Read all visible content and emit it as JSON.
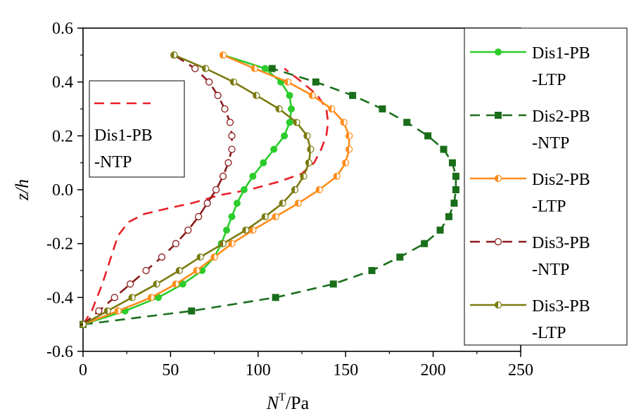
{
  "chart_data": {
    "type": "line",
    "xlabel": {
      "main": "N",
      "sup": "T",
      "rest": "/Pa"
    },
    "ylabel": "z/h",
    "xlim": [
      0,
      250
    ],
    "ylim": [
      -0.6,
      0.6
    ],
    "xticks": [
      "0",
      "50",
      "100",
      "150",
      "200",
      "250"
    ],
    "yticks": [
      "-0.6",
      "-0.4",
      "-0.2",
      "0.0",
      "0.2",
      "0.4",
      "0.6"
    ],
    "grid": false,
    "legend_placement": "right-outside (boxed); one entry boxed upper-left inside plot",
    "series": [
      {
        "name": "Dis1-PB -NTP",
        "name_lines": [
          "Dis1-PB",
          "-NTP"
        ],
        "color": "#e8202a",
        "dash": "14,9",
        "marker": "none",
        "x": [
          0,
          5,
          11,
          16,
          20,
          26,
          35,
          48,
          62,
          78,
          95,
          112,
          125,
          132,
          136,
          139,
          140,
          139,
          134,
          125,
          115
        ],
        "y": [
          -0.5,
          -0.45,
          -0.35,
          -0.25,
          -0.17,
          -0.12,
          -0.09,
          -0.07,
          -0.05,
          -0.02,
          0.0,
          0.03,
          0.06,
          0.1,
          0.15,
          0.2,
          0.25,
          0.3,
          0.35,
          0.4,
          0.45
        ]
      },
      {
        "name": "Dis2-PB -NTP",
        "name_lines": [
          "Dis2-PB",
          "-NTP"
        ],
        "color": "#1a6e1a",
        "dash": "14,9",
        "marker": "square",
        "x": [
          0,
          62,
          110,
          143,
          165,
          181,
          195,
          204,
          209,
          212,
          213,
          213,
          211,
          206,
          197,
          185,
          171,
          154,
          133,
          108
        ],
        "y": [
          -0.5,
          -0.45,
          -0.4,
          -0.35,
          -0.3,
          -0.25,
          -0.2,
          -0.15,
          -0.1,
          -0.05,
          0.0,
          0.05,
          0.1,
          0.15,
          0.2,
          0.25,
          0.3,
          0.35,
          0.4,
          0.45
        ]
      },
      {
        "name": "Dis1-PB -LTP",
        "name_lines": [
          "Dis1-PB",
          "-LTP"
        ],
        "color": "#2bcc2b",
        "dash": "",
        "marker": "circle-filled",
        "x": [
          0,
          24,
          43,
          57,
          68,
          75,
          79,
          82,
          85,
          88,
          92,
          97,
          103,
          109,
          115,
          118,
          119,
          118,
          113,
          104,
          80
        ],
        "y": [
          -0.5,
          -0.45,
          -0.4,
          -0.35,
          -0.3,
          -0.25,
          -0.2,
          -0.15,
          -0.1,
          -0.05,
          0.0,
          0.05,
          0.1,
          0.15,
          0.2,
          0.25,
          0.3,
          0.35,
          0.4,
          0.45,
          0.5
        ]
      },
      {
        "name": "Dis2-PB -LTP",
        "name_lines": [
          "Dis2-PB",
          "-LTP"
        ],
        "color": "#ff8c1a",
        "dash": "",
        "marker": "circle-half",
        "x": [
          0,
          20,
          39,
          53,
          65,
          75,
          85,
          97,
          110,
          123,
          135,
          145,
          150,
          152,
          152,
          149,
          142,
          131,
          117,
          98,
          80
        ],
        "y": [
          -0.5,
          -0.45,
          -0.4,
          -0.35,
          -0.3,
          -0.25,
          -0.2,
          -0.15,
          -0.1,
          -0.05,
          0.0,
          0.05,
          0.1,
          0.15,
          0.2,
          0.25,
          0.3,
          0.35,
          0.4,
          0.45,
          0.5
        ]
      },
      {
        "name": "Dis3-PB -NTP",
        "name_lines": [
          "Dis3-PB",
          "-NTP"
        ],
        "color": "#8b1a1a",
        "dash": "14,9",
        "marker": "circle-open",
        "x": [
          0,
          9,
          18,
          27,
          36,
          45,
          53,
          60,
          66,
          71,
          76,
          80,
          83,
          85,
          85,
          84,
          81,
          77,
          72,
          64,
          52
        ],
        "y": [
          -0.5,
          -0.45,
          -0.4,
          -0.35,
          -0.3,
          -0.25,
          -0.2,
          -0.15,
          -0.1,
          -0.05,
          0.0,
          0.05,
          0.1,
          0.15,
          0.2,
          0.25,
          0.3,
          0.35,
          0.4,
          0.45,
          0.5
        ]
      },
      {
        "name": "Dis3-PB -LTP",
        "name_lines": [
          "Dis3-PB",
          "-LTP"
        ],
        "color": "#7a7a10",
        "dash": "",
        "marker": "circle-half",
        "x": [
          0,
          14,
          28,
          42,
          55,
          67,
          80,
          93,
          104,
          114,
          121,
          126,
          129,
          130,
          128,
          122,
          112,
          99,
          86,
          70,
          52
        ],
        "y": [
          -0.5,
          -0.45,
          -0.4,
          -0.35,
          -0.3,
          -0.25,
          -0.2,
          -0.15,
          -0.1,
          -0.05,
          0.0,
          0.05,
          0.1,
          0.15,
          0.2,
          0.25,
          0.3,
          0.35,
          0.4,
          0.45,
          0.5
        ]
      }
    ],
    "legend_right_order": [
      2,
      1,
      3,
      4,
      5
    ],
    "legend_inset_order": [
      0
    ]
  }
}
